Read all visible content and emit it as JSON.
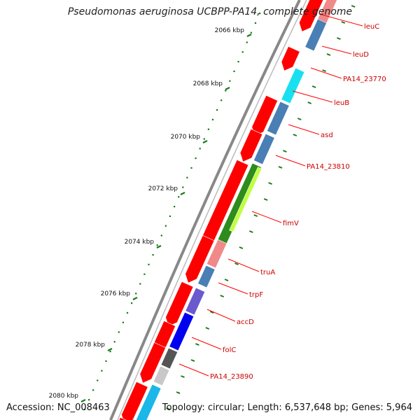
{
  "map": {
    "title": "Pseudomonas aeruginosa UCBPP-PA14, complete genome",
    "accession_text": "Accession: NC_008463",
    "stats_text": "Topology: circular; Length: 6,537,648 bp; Genes: 5,964"
  },
  "kbp_labels": [
    "2066 kbp",
    "2068 kbp",
    "2070 kbp",
    "2072 kbp",
    "2074 kbp",
    "2076 kbp",
    "2078 kbp",
    "2080 kbp"
  ],
  "gene_labels": [
    "leuC",
    "leuD",
    "PA14_23770",
    "leuB",
    "asd",
    "PA14_23810",
    "fimV",
    "truA",
    "trpF",
    "accD",
    "folC",
    "PA14_23890"
  ],
  "colors": {
    "backbone": "#888888",
    "cds_reverse": "#ff0000",
    "tick_mark": "#1a7a1a",
    "label_line": "#ff0000",
    "label_text": "#cc0000",
    "steelblue": "#4a7fb5",
    "cyan": "#19e0f0",
    "fim_green": "#2e8b1e",
    "fim_lime": "#bfff3f",
    "pink": "#f08a8a",
    "slate": "#6a5acd",
    "blue": "#0000f0",
    "darkgray": "#555555",
    "lightgray": "#c8c8c8",
    "skyblue": "#1ab7e8"
  }
}
